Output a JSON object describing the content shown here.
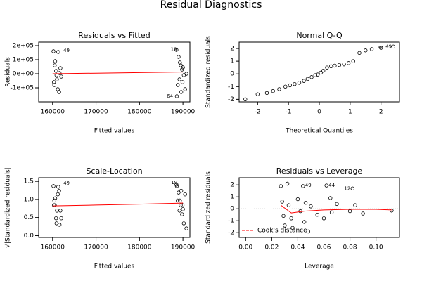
{
  "title": "Residual Diagnostics",
  "chart_data": [
    {
      "type": "scatter",
      "title": "Residuals vs Fitted",
      "x_label": "Fitted values",
      "y_label": "Residuals",
      "xlim": [
        156800,
        191600
      ],
      "ylim": [
        -200000,
        225000
      ],
      "xticks": [
        160000,
        170000,
        180000,
        190000
      ],
      "yticks": [
        {
          "value": -100000,
          "label": "-1e+05"
        },
        {
          "value": 0,
          "label": "0e+00"
        },
        {
          "value": 100000,
          "label": "1e+05"
        },
        {
          "value": 200000,
          "label": "2e+05"
        }
      ],
      "point_color": "#000000",
      "x": [
        160200,
        160500,
        160800,
        161000,
        160300,
        161200,
        161500,
        160600,
        161800,
        162000,
        160400,
        161300,
        161600,
        160900,
        188500,
        189000,
        189500,
        189800,
        190200,
        189200,
        188800,
        190500,
        189600,
        188600,
        190800,
        189300,
        190000,
        189900
      ],
      "y": [
        160000,
        60000,
        20000,
        -40000,
        -60000,
        -110000,
        -130000,
        90000,
        40000,
        -20000,
        -80000,
        155000,
        5000,
        -10000,
        170000,
        120000,
        60000,
        30000,
        -10000,
        -40000,
        -80000,
        -110000,
        -130000,
        -160000,
        0,
        80000,
        45000,
        -60000
      ],
      "fit": {
        "color": "#ff0000",
        "x": [
          160000,
          170000,
          180000,
          190000
        ],
        "y": [
          0,
          4000,
          8000,
          12000
        ]
      },
      "annotations": [
        {
          "text": "49",
          "x": 163200,
          "y": 165000
        },
        {
          "text": "19",
          "x": 187900,
          "y": 172000
        },
        {
          "text": "64",
          "x": 187000,
          "y": -160000
        }
      ]
    },
    {
      "type": "scatter",
      "title": "Normal Q-Q",
      "x_label": "Theoretical Quantiles",
      "y_label": "Standardized residuals",
      "xlim": [
        -2.6,
        2.6
      ],
      "ylim": [
        -2.2,
        2.5
      ],
      "xticks": [
        -2,
        -1,
        0,
        1,
        2
      ],
      "yticks": [
        -2,
        -1,
        0,
        1,
        2
      ],
      "point_color": "#000000",
      "x": [
        -2.4,
        -2.0,
        -1.7,
        -1.5,
        -1.3,
        -1.1,
        -0.95,
        -0.8,
        -0.65,
        -0.5,
        -0.38,
        -0.25,
        -0.13,
        -0.05,
        0.05,
        0.13,
        0.25,
        0.38,
        0.5,
        0.65,
        0.8,
        0.95,
        1.1,
        1.3,
        1.5,
        1.7,
        2.0,
        2.4
      ],
      "y": [
        -2.0,
        -1.6,
        -1.5,
        -1.35,
        -1.2,
        -1.0,
        -0.9,
        -0.8,
        -0.7,
        -0.55,
        -0.4,
        -0.25,
        -0.1,
        -0.05,
        0.1,
        0.25,
        0.5,
        0.6,
        0.65,
        0.7,
        0.75,
        0.85,
        1.0,
        1.65,
        1.85,
        1.95,
        2.05,
        2.15
      ],
      "annotations": [
        {
          "text": "44",
          "x": 2.0,
          "y": 2.05
        },
        {
          "text": "49",
          "x": 2.25,
          "y": 2.15
        }
      ]
    },
    {
      "type": "scatter",
      "title": "Scale-Location",
      "x_label": "Fitted values",
      "y_label": "√|Standardized residuals|",
      "xlim": [
        156800,
        191600
      ],
      "ylim": [
        -0.05,
        1.6
      ],
      "xticks": [
        160000,
        170000,
        180000,
        190000
      ],
      "yticks": [
        {
          "value": 0,
          "label": "0.0"
        },
        0.5,
        {
          "value": 1,
          "label": "1.0"
        },
        1.5
      ],
      "point_color": "#000000",
      "x": [
        160200,
        160500,
        160800,
        161000,
        160300,
        161200,
        161500,
        160600,
        161800,
        162000,
        160400,
        161300,
        161600,
        160900,
        188500,
        189000,
        189500,
        189800,
        190200,
        189200,
        188800,
        190500,
        189600,
        188600,
        190800,
        189300,
        190000,
        189900
      ],
      "y": [
        1.37,
        0.84,
        0.48,
        0.69,
        0.84,
        1.14,
        1.24,
        1.03,
        0.69,
        0.48,
        0.97,
        1.35,
        0.3,
        0.34,
        1.41,
        1.19,
        0.84,
        0.59,
        0.34,
        0.69,
        0.97,
        1.14,
        1.24,
        1.37,
        0.2,
        0.97,
        0.73,
        0.84
      ],
      "fit": {
        "color": "#ff0000",
        "x": [
          160000,
          170000,
          180000,
          190000
        ],
        "y": [
          0.82,
          0.845,
          0.87,
          0.9
        ]
      },
      "annotations": [
        {
          "text": "49",
          "x": 163200,
          "y": 1.44
        },
        {
          "text": "19",
          "x": 188000,
          "y": 1.46
        }
      ]
    },
    {
      "type": "scatter",
      "title": "Residuals vs Leverage",
      "x_label": "Leverage",
      "y_label": "Standardized residuals",
      "xlim": [
        -0.005,
        0.118
      ],
      "ylim": [
        -2.4,
        2.6
      ],
      "xticks": [
        {
          "value": 0,
          "label": "0.00"
        },
        {
          "value": 0.02,
          "label": "0.02"
        },
        {
          "value": 0.04,
          "label": "0.04"
        },
        {
          "value": 0.06,
          "label": "0.06"
        },
        {
          "value": 0.08,
          "label": "0.08"
        },
        {
          "value": 0.1,
          "label": "0.10"
        }
      ],
      "yticks": [
        -2,
        -1,
        0,
        1,
        2
      ],
      "point_color": "#000000",
      "x": [
        0.027,
        0.028,
        0.029,
        0.03,
        0.032,
        0.033,
        0.035,
        0.036,
        0.04,
        0.042,
        0.044,
        0.045,
        0.046,
        0.048,
        0.05,
        0.055,
        0.06,
        0.062,
        0.065,
        0.066,
        0.07,
        0.08,
        0.082,
        0.084,
        0.09,
        0.112
      ],
      "y": [
        1.9,
        0.6,
        -0.6,
        -1.4,
        2.1,
        0.3,
        -0.8,
        -1.6,
        0.8,
        -0.2,
        1.9,
        -1.1,
        0.5,
        -1.9,
        0.2,
        -0.5,
        -0.8,
        1.95,
        0.9,
        -0.3,
        0.4,
        -0.2,
        1.7,
        0.3,
        -0.4,
        -0.15
      ],
      "fit": {
        "color": "#ff0000",
        "x": [
          0.027,
          0.035,
          0.045,
          0.06,
          0.08,
          0.1,
          0.112
        ],
        "y": [
          0.3,
          -0.35,
          -0.2,
          -0.1,
          -0.05,
          -0.05,
          -0.1
        ]
      },
      "annotations": [
        {
          "text": "49",
          "x": 0.048,
          "y": 1.95
        },
        {
          "text": "44",
          "x": 0.066,
          "y": 1.95
        },
        {
          "text": "12",
          "x": 0.078,
          "y": 1.7
        }
      ],
      "legend": {
        "label": "Cook's distance",
        "color": "#ff0000",
        "position": "bottomleft"
      }
    }
  ]
}
